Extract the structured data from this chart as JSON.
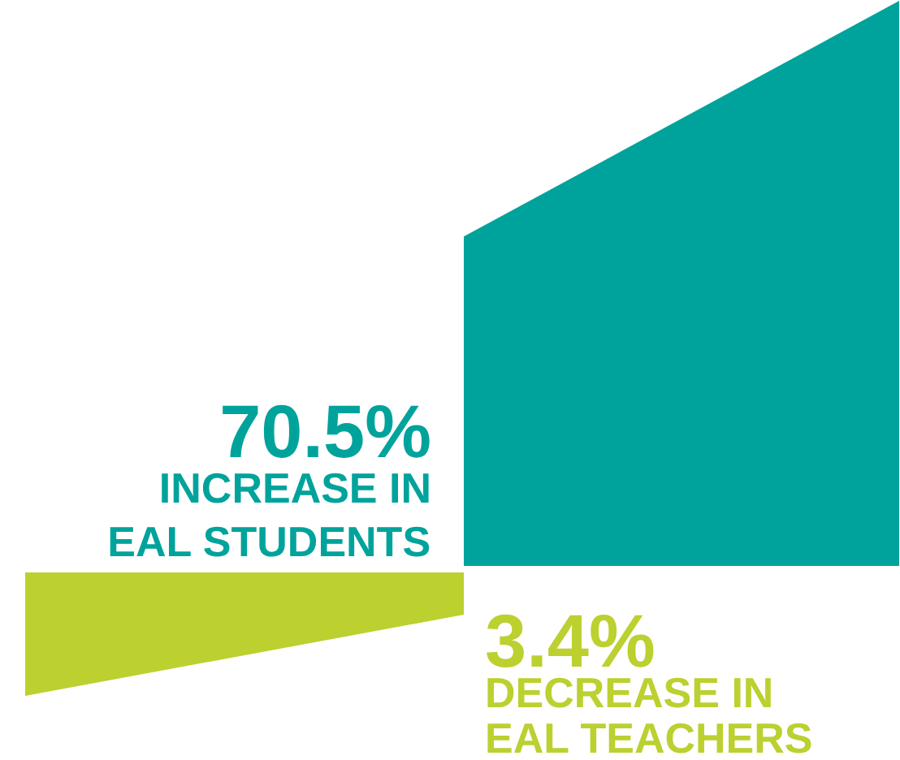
{
  "chart_data": {
    "type": "other",
    "categories": [
      "INCREASE IN\nEAL STUDENTS",
      "DECREASE IN\nEAL TEACHERS"
    ],
    "values": [
      70.5,
      3.4
    ],
    "value_labels": [
      "70.5%",
      "3.4%"
    ],
    "colors": [
      "#00a39b",
      "#bcd030"
    ]
  }
}
